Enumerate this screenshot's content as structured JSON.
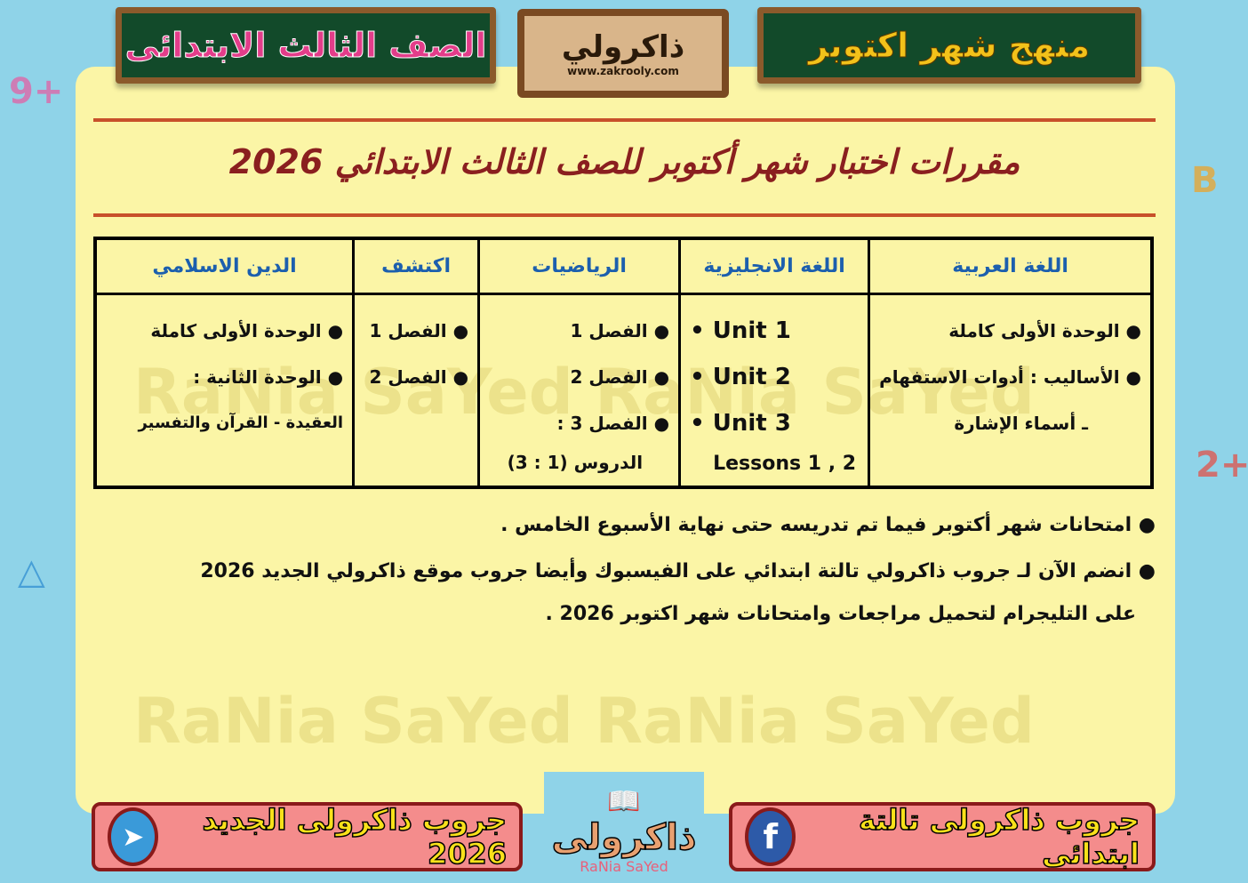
{
  "header": {
    "grade_board": "الصف الثالث الابتدائى",
    "logo_name": "ذاكرولي",
    "logo_url": "www.zakrooly.com",
    "month_board": "منهج شهر اكتوبر"
  },
  "title": "مقررات اختبار شهر أكتوبر للصف الثالث الابتدائي 2026",
  "watermark": "RaNia SaYed",
  "table": {
    "headers": [
      "اللغة العربية",
      "اللغة الانجليزية",
      "الرياضيات",
      "اكتشف",
      "الدين الاسلامي"
    ],
    "arabic": [
      "● الوحدة الأولى كاملة",
      "● الأساليب : أدوات الاستفهام",
      "ـ أسماء الإشارة"
    ],
    "english": [
      "• Unit 1",
      "• Unit 2",
      "• Unit 3",
      "Lessons 1 , 2"
    ],
    "math": [
      "● الفصل 1",
      "● الفصل 2",
      "● الفصل 3 :",
      "الدروس (1 : 3)"
    ],
    "discover": [
      "● الفصل 1",
      "● الفصل 2"
    ],
    "religion": [
      "● الوحدة الأولى كاملة",
      "● الوحدة الثانية :",
      "العقيدة - القرآن والتفسير"
    ]
  },
  "notes": [
    "● امتحانات شهر أكتوبر فيما تم تدريسه حتى نهاية الأسبوع الخامس .",
    "● انضم الآن لـ جروب ذاكرولي تالتة ابتدائي على الفيسبوك وأيضا جروب موقع ذاكرولي الجديد 2026",
    "على التليجرام لتحميل مراجعات وامتحانات شهر اكتوبر 2026 ."
  ],
  "footer": {
    "facebook_label": "جروب ذاكرولى تالتة ابتدائى",
    "telegram_label": "جروب ذاكرولى الجديد 2026",
    "logo_name": "ذاكرولى",
    "logo_sub": "RaNia SaYed"
  },
  "colors": {
    "panel": "#fbf5a6",
    "title": "#8a1f1f",
    "header_text": "#1c5fae",
    "facebook": "#2d5aa8",
    "telegram": "#3a9ad9"
  }
}
